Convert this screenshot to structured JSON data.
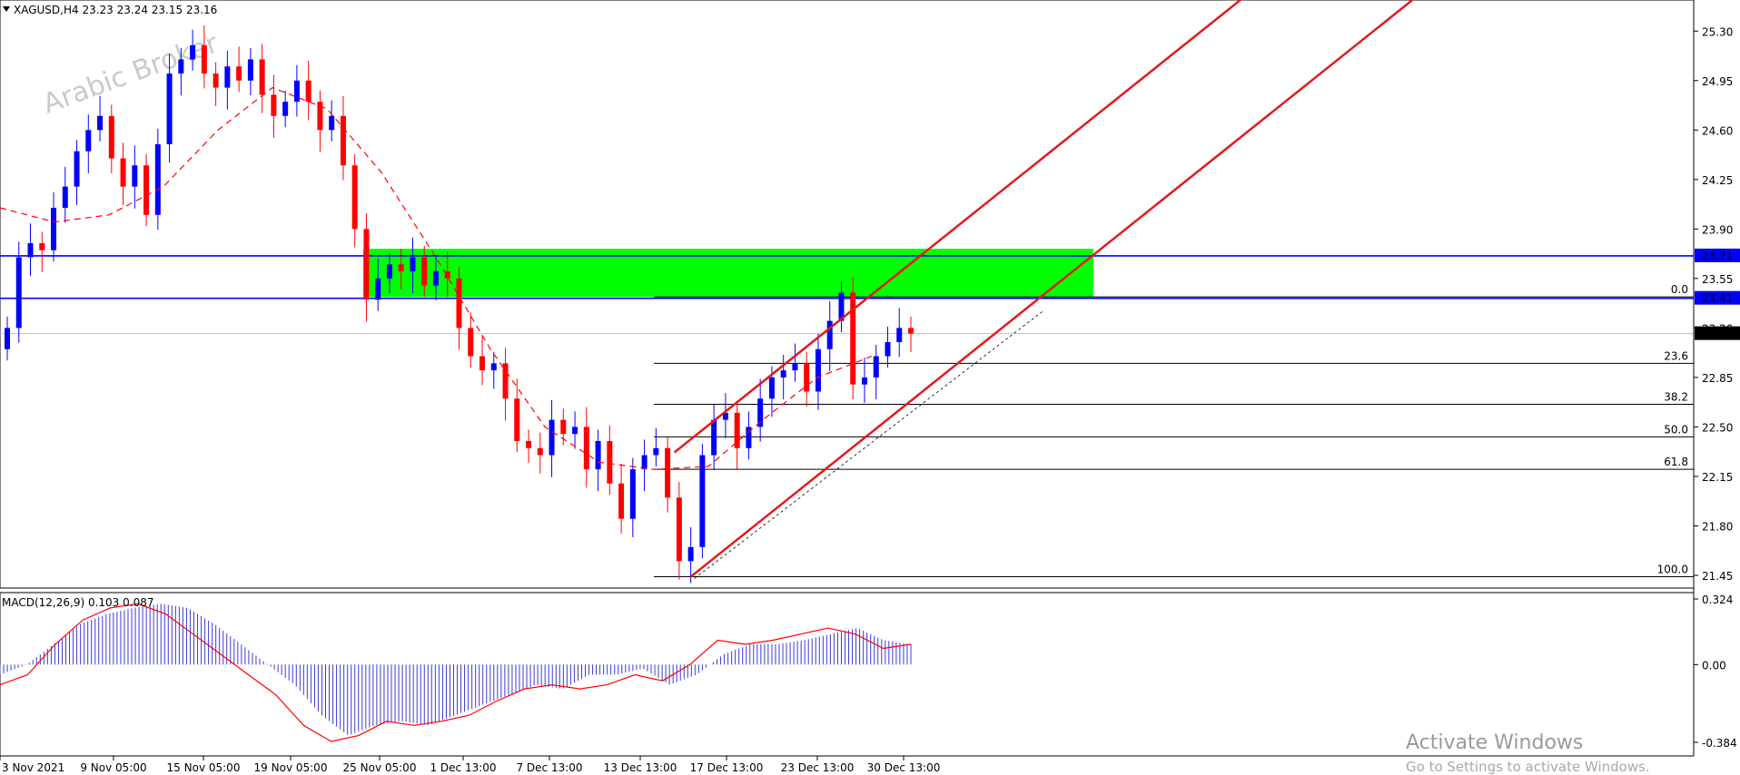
{
  "chart_data": {
    "type": "candlestick",
    "symbol_header": "XAGUSD,H4  23.23 23.24 23.15 23.16",
    "watermark": "Arabic Broker",
    "price_axis_ticks": [
      "25.30",
      "24.95",
      "24.60",
      "24.25",
      "23.90",
      "23.55",
      "23.20",
      "22.85",
      "22.50",
      "22.15",
      "21.80",
      "21.45"
    ],
    "price_range": [
      21.36,
      25.52
    ],
    "time_axis_labels": [
      "3 Nov 2021",
      "9 Nov 05:00",
      "15 Nov 05:00",
      "19 Nov 05:00",
      "25 Nov 05:00",
      "1 Dec 13:00",
      "7 Dec 13:00",
      "13 Dec 13:00",
      "17 Dec 13:00",
      "23 Dec 13:00",
      "30 Dec 13:00"
    ],
    "horizontal_levels": [
      {
        "price": 23.71,
        "label": "23.71",
        "color": "#0000ff"
      },
      {
        "price": 23.41,
        "label": "23.41",
        "color": "#0000ff"
      }
    ],
    "current_price": {
      "price": 23.16,
      "label": "23.16"
    },
    "supply_zone": {
      "top": 23.76,
      "bottom": 23.42,
      "color": "#00ff00"
    },
    "fibonacci": [
      {
        "level": "0.0",
        "price": 23.42
      },
      {
        "level": "23.6",
        "price": 22.95
      },
      {
        "level": "38.2",
        "price": 22.66
      },
      {
        "level": "50.0",
        "price": 22.43
      },
      {
        "level": "61.8",
        "price": 22.2
      },
      {
        "level": "100.0",
        "price": 21.44
      }
    ],
    "closes": [
      23.2,
      23.7,
      23.8,
      23.75,
      24.05,
      24.2,
      24.45,
      24.6,
      24.7,
      24.4,
      24.2,
      24.35,
      24.0,
      24.5,
      25.0,
      25.1,
      25.2,
      25.0,
      24.9,
      25.05,
      24.95,
      25.1,
      24.85,
      24.7,
      24.8,
      24.95,
      24.8,
      24.6,
      24.7,
      24.35,
      23.9,
      23.4,
      23.55,
      23.65,
      23.6,
      23.7,
      23.5,
      23.6,
      23.55,
      23.2,
      23.0,
      22.9,
      22.95,
      22.7,
      22.4,
      22.35,
      22.3,
      22.55,
      22.45,
      22.5,
      22.2,
      22.4,
      22.1,
      21.85,
      22.2,
      22.3,
      22.35,
      22.0,
      21.55,
      21.65,
      22.3,
      22.55,
      22.6,
      22.35,
      22.5,
      22.7,
      22.85,
      22.9,
      22.95,
      22.75,
      23.05,
      23.25,
      23.45,
      22.8,
      22.85,
      23.0,
      23.1,
      23.2,
      23.16
    ],
    "ma_curve": [
      24.05,
      23.95,
      24.0,
      24.2,
      24.6,
      24.9,
      24.75,
      24.3,
      23.7,
      23.05,
      22.5,
      22.25,
      22.2,
      22.22,
      22.55,
      22.85,
      23.0
    ],
    "macd": {
      "label": "MACD(12,26,9) 0.103 0.087",
      "ticks": [
        "0.324",
        "0.00",
        "-0.384"
      ],
      "range": [
        -0.384,
        0.324
      ],
      "hist": [
        -0.05,
        0.0,
        0.1,
        0.2,
        0.25,
        0.28,
        0.3,
        0.28,
        0.2,
        0.1,
        0.0,
        -0.1,
        -0.25,
        -0.35,
        -0.3,
        -0.28,
        -0.3,
        -0.25,
        -0.2,
        -0.15,
        -0.1,
        -0.12,
        -0.05,
        -0.05,
        -0.02,
        -0.1,
        -0.05,
        0.05,
        0.1,
        0.1,
        0.12,
        0.15,
        0.18,
        0.12,
        0.1
      ],
      "signal": [
        -0.1,
        -0.05,
        0.1,
        0.22,
        0.28,
        0.3,
        0.25,
        0.15,
        0.05,
        -0.05,
        -0.15,
        -0.3,
        -0.38,
        -0.35,
        -0.28,
        -0.3,
        -0.28,
        -0.25,
        -0.18,
        -0.12,
        -0.1,
        -0.12,
        -0.1,
        -0.05,
        -0.08,
        0.0,
        0.12,
        0.1,
        0.12,
        0.15,
        0.18,
        0.15,
        0.08,
        0.1
      ]
    }
  },
  "watermark_windows": {
    "title": "Activate Windows",
    "subtitle": "Go to Settings to activate Windows."
  },
  "colors": {
    "bull": "#0000ff",
    "bear": "#ff0000",
    "channel": "#e31a1a",
    "zone": "#00ff00"
  }
}
